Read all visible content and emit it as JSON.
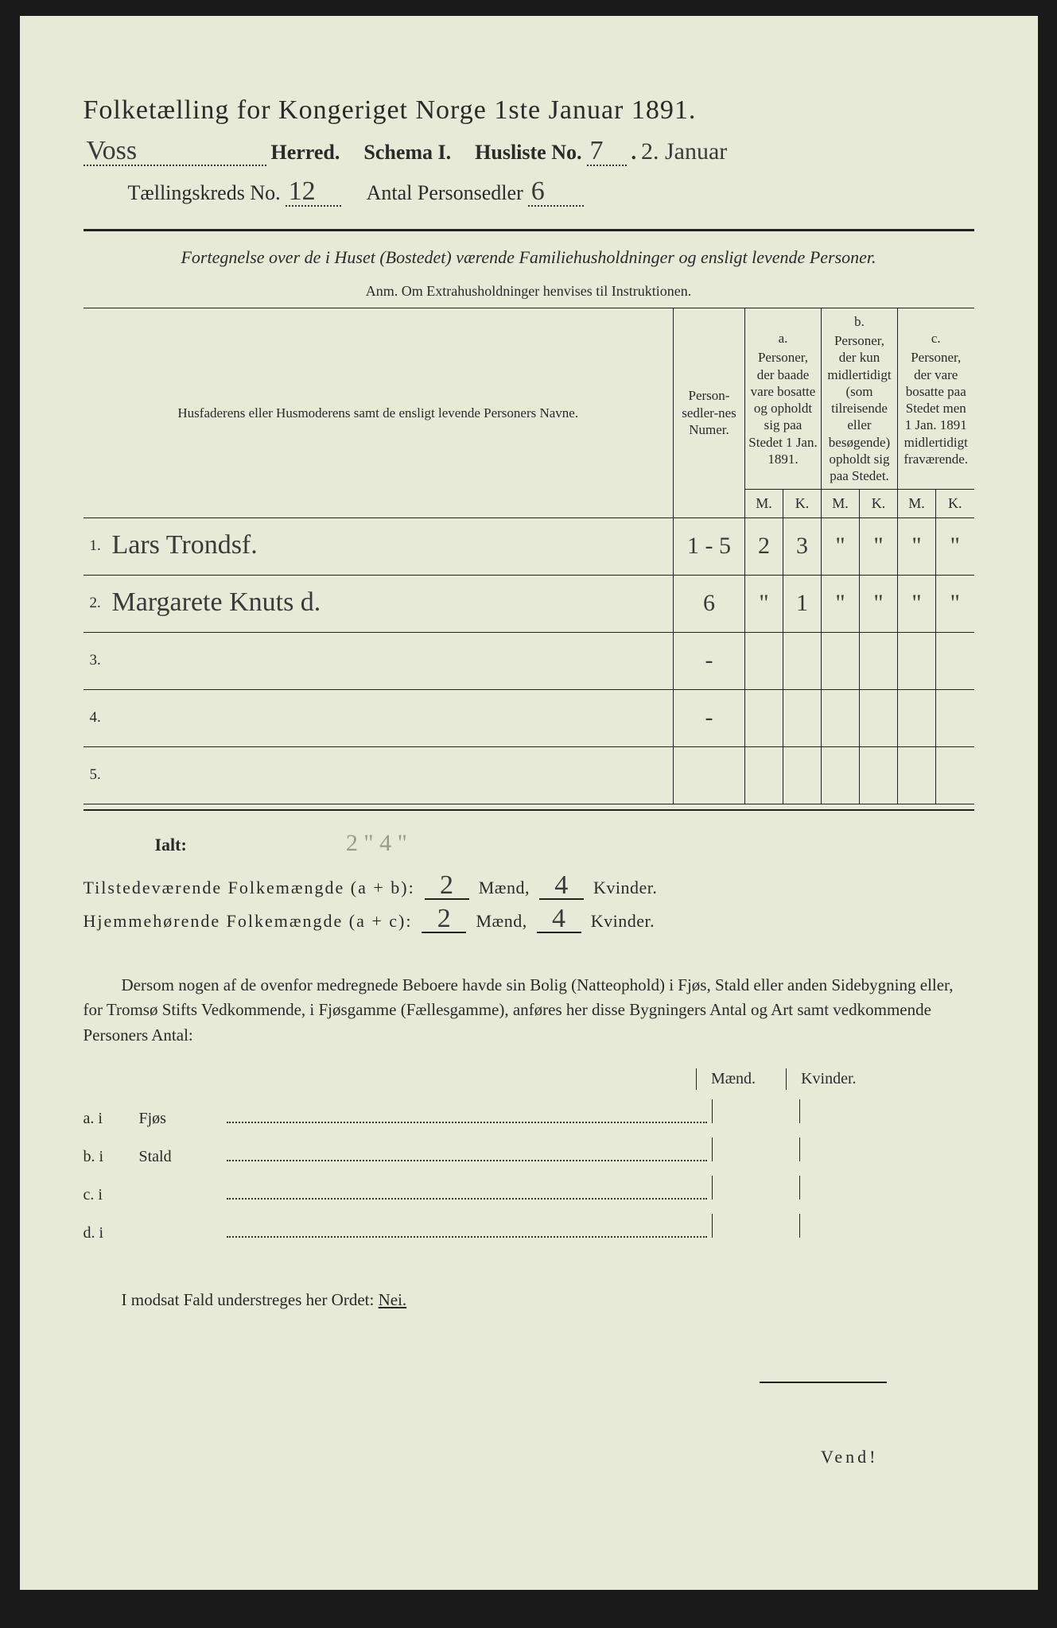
{
  "title": "Folketælling for Kongeriget Norge 1ste Januar 1891.",
  "header": {
    "herred_value": "Voss",
    "herred_label": "Herred.",
    "schema_label": "Schema I.",
    "husliste_label": "Husliste No.",
    "husliste_value": "7",
    "date_note": "2. Januar",
    "kreds_label": "Tællingskreds No.",
    "kreds_value": "12",
    "antal_label": "Antal Personsedler",
    "antal_value": "6"
  },
  "subtitle": "Fortegnelse over de i Huset (Bostedet) værende Familiehusholdninger og ensligt levende Personer.",
  "anm": "Anm. Om Extrahusholdninger henvises til Instruktionen.",
  "table": {
    "col_names": "Husfaderens eller Husmoderens samt de ensligt levende Personers Navne.",
    "col_num": "Person-sedler-nes Numer.",
    "col_a_label": "a.",
    "col_a": "Personer, der baade vare bosatte og opholdt sig paa Stedet 1 Jan. 1891.",
    "col_b_label": "b.",
    "col_b": "Personer, der kun midlertidigt (som tilreisende eller besøgende) opholdt sig paa Stedet.",
    "col_c_label": "c.",
    "col_c": "Personer, der vare bosatte paa Stedet men 1 Jan. 1891 midlertidigt fraværende.",
    "M": "M.",
    "K": "K.",
    "rows": [
      {
        "n": "1.",
        "name": "Lars Trondsf.",
        "num": "1 - 5",
        "aM": "2",
        "aK": "3",
        "bM": "\"",
        "bK": "\"",
        "cM": "\"",
        "cK": "\""
      },
      {
        "n": "2.",
        "name": "Margarete Knuts d.",
        "num": "6",
        "aM": "\"",
        "aK": "1",
        "bM": "\"",
        "bK": "\"",
        "cM": "\"",
        "cK": "\""
      },
      {
        "n": "3.",
        "name": "",
        "num": "-",
        "aM": "",
        "aK": "",
        "bM": "",
        "bK": "",
        "cM": "",
        "cK": ""
      },
      {
        "n": "4.",
        "name": "",
        "num": "-",
        "aM": "",
        "aK": "",
        "bM": "",
        "bK": "",
        "cM": "",
        "cK": ""
      },
      {
        "n": "5.",
        "name": "",
        "num": "",
        "aM": "",
        "aK": "",
        "bM": "",
        "bK": "",
        "cM": "",
        "cK": ""
      }
    ]
  },
  "ialt_label": "Ialt:",
  "ialt_pencil": "2 \" 4 \"",
  "sum1": {
    "label": "Tilstedeværende Folkemængde (a + b):",
    "m": "2",
    "mlab": "Mænd,",
    "k": "4",
    "klab": "Kvinder."
  },
  "sum2": {
    "label": "Hjemmehørende Folkemængde (a + c):",
    "m": "2",
    "mlab": "Mænd,",
    "k": "4",
    "klab": "Kvinder."
  },
  "para": "Dersom nogen af de ovenfor medregnede Beboere havde sin Bolig (Natteophold) i Fjøs, Stald eller anden Sidebygning eller, for Tromsø Stifts Vedkommende, i Fjøsgamme (Fællesgamme), anføres her disse Bygningers Antal og Art samt vedkommende Personers Antal:",
  "mk": {
    "m": "Mænd.",
    "k": "Kvinder."
  },
  "abcd": [
    {
      "l": "a.  i",
      "t": "Fjøs"
    },
    {
      "l": "b.  i",
      "t": "Stald"
    },
    {
      "l": "c.  i",
      "t": ""
    },
    {
      "l": "d.  i",
      "t": ""
    }
  ],
  "nei": {
    "pre": "I modsat Fald understreges her Ordet:",
    "word": "Nei."
  },
  "vend": "Vend!"
}
